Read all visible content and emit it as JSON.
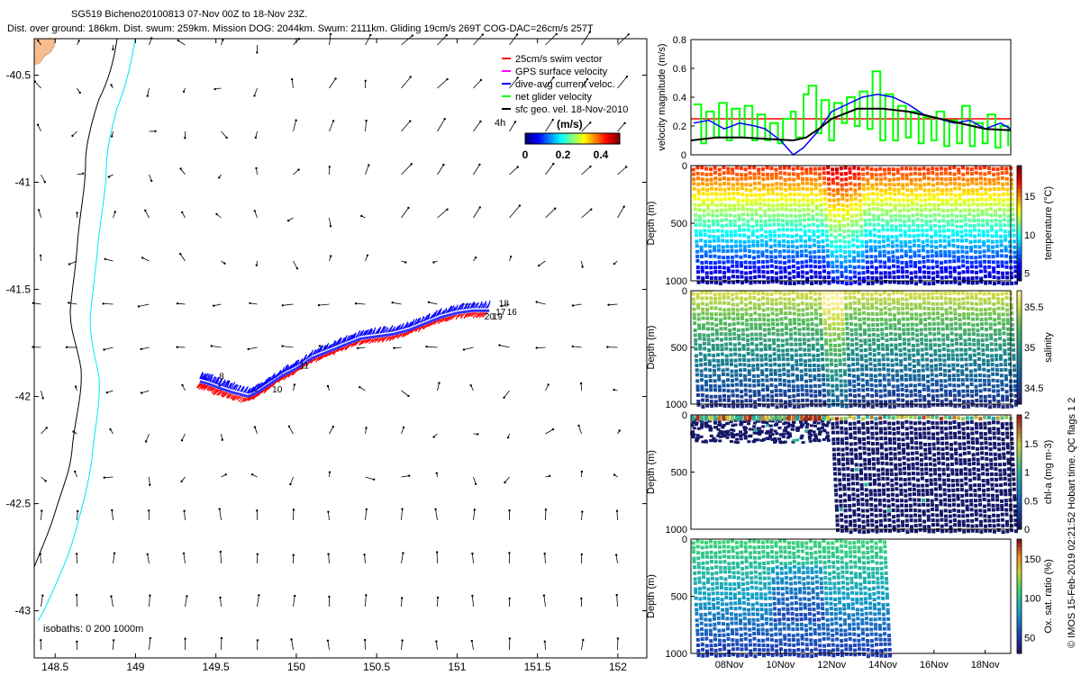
{
  "titles": {
    "line1": "SG519 Bicheno20100813 07-Nov 00Z to 18-Nov 23Z.",
    "line2": "Dist. over ground: 186km. Dist. swum: 259km. Mission DOG: 2044km. Swum: 2111km. Gliding 19cm/s 269T COG-DAC=26cm/s 257T"
  },
  "side_note": "© IMOS 15-Feb-2019 02:21:52 Hobart time. QC flags 1  2",
  "colors": {
    "swim": "#ff0000",
    "gps": "#ff00ff",
    "dac": "#0000ff",
    "net": "#00ff00",
    "sfc": "#000000",
    "coast": "#000000",
    "isobath": "#00e5ff",
    "land": "#f6bd8e",
    "red_line": "#ff0000"
  },
  "chart_data": [
    {
      "id": "map",
      "type": "scatter",
      "title": "",
      "xlim": [
        148.37,
        152.18
      ],
      "ylim": [
        -43.22,
        -40.33
      ],
      "x_ticks": [
        148.5,
        149,
        149.5,
        150,
        150.5,
        151,
        151.5,
        152
      ],
      "x_tick_labels": [
        "148.5",
        "149",
        "149.5",
        "150",
        "150.5",
        "151",
        "151.5",
        "152"
      ],
      "y_ticks": [
        -40.5,
        -41,
        -41.5,
        -42,
        -42.5,
        -43
      ],
      "y_tick_labels": [
        "-40.5",
        "-41",
        "-41.5",
        "-42",
        "-42.5",
        "-43"
      ],
      "legend_position": "top-right",
      "legend": [
        {
          "label": "25cm/s swim vector",
          "color_key": "swim"
        },
        {
          "label": "GPS surface velocity",
          "color_key": "gps"
        },
        {
          "label": "dive-avg current veloc.",
          "color_key": "dac"
        },
        {
          "label": "net glider velocity",
          "color_key": "net"
        },
        {
          "label": "sfc geo. vel. 18-Nov-2010",
          "color_key": "sfc"
        }
      ],
      "colorbar": {
        "label": "(m/s)",
        "ticks": [
          0,
          0.2,
          0.4
        ],
        "tick_labels": [
          "0",
          "0.2",
          "0.4"
        ],
        "range": [
          0,
          0.5
        ],
        "corner_label": "4h"
      },
      "isobath_label": "isobaths: 0   200  1000m",
      "track": {
        "lon": [
          149.4,
          149.45,
          149.52,
          149.6,
          149.7,
          149.76,
          149.84,
          149.92,
          150.0,
          150.1,
          150.2,
          150.3,
          150.4,
          150.5,
          150.6,
          150.7,
          150.8,
          150.9,
          151.0,
          151.1,
          151.2
        ],
        "lat": [
          -41.93,
          -41.94,
          -41.96,
          -41.98,
          -42.0,
          -41.98,
          -41.94,
          -41.9,
          -41.87,
          -41.82,
          -41.79,
          -41.76,
          -41.73,
          -41.72,
          -41.71,
          -41.69,
          -41.66,
          -41.63,
          -41.61,
          -41.6,
          -41.6
        ]
      },
      "track_labels": [
        {
          "text": "10",
          "lon": 149.85,
          "lat": -41.98
        },
        {
          "text": "11",
          "lon": 150.02,
          "lat": -41.87
        },
        {
          "text": "8",
          "lon": 149.52,
          "lat": -41.92
        },
        {
          "text": "17",
          "lon": 151.24,
          "lat": -41.62
        },
        {
          "text": "16",
          "lon": 151.31,
          "lat": -41.62
        },
        {
          "text": "18",
          "lon": 151.26,
          "lat": -41.58
        },
        {
          "text": "19",
          "lon": 151.22,
          "lat": -41.64
        },
        {
          "text": "20",
          "lon": 151.17,
          "lat": -41.64
        }
      ]
    },
    {
      "id": "velocity",
      "type": "line",
      "title": "",
      "ylabel": "velocity magnitude (m/s)",
      "ylim": [
        0,
        0.8
      ],
      "y_ticks": [
        0,
        0.2,
        0.4,
        0.6,
        0.8
      ],
      "y_tick_labels": [
        "0",
        "0.2",
        "0.4",
        "0.6",
        "0.8"
      ],
      "xlim": [
        6.5,
        19.0
      ],
      "series": [
        {
          "color_key": "net",
          "x": [
            6.6,
            6.9,
            7.1,
            7.4,
            7.6,
            7.9,
            8.1,
            8.4,
            8.6,
            8.9,
            9.1,
            9.4,
            9.6,
            9.9,
            10.1,
            10.4,
            10.6,
            10.9,
            11.1,
            11.4,
            11.6,
            11.9,
            12.1,
            12.4,
            12.6,
            12.9,
            13.1,
            13.4,
            13.6,
            13.9,
            14.1,
            14.4,
            14.6,
            14.9,
            15.1,
            15.4,
            15.6,
            15.9,
            16.1,
            16.4,
            16.6,
            16.9,
            17.1,
            17.4,
            17.6,
            17.9,
            18.1,
            18.4,
            18.6,
            18.9
          ],
          "y": [
            0.35,
            0.08,
            0.3,
            0.12,
            0.36,
            0.1,
            0.32,
            0.12,
            0.34,
            0.1,
            0.28,
            0.1,
            0.22,
            0.08,
            0.25,
            0.3,
            0.12,
            0.42,
            0.48,
            0.15,
            0.38,
            0.1,
            0.36,
            0.22,
            0.4,
            0.2,
            0.44,
            0.18,
            0.58,
            0.1,
            0.42,
            0.1,
            0.34,
            0.12,
            0.3,
            0.08,
            0.26,
            0.1,
            0.3,
            0.06,
            0.24,
            0.08,
            0.34,
            0.06,
            0.22,
            0.08,
            0.28,
            0.05,
            0.2,
            0.06
          ]
        },
        {
          "color_key": "dac",
          "x": [
            6.6,
            7.2,
            7.8,
            8.4,
            9.0,
            9.4,
            10.0,
            10.5,
            10.9,
            11.4,
            12.0,
            12.6,
            13.2,
            13.8,
            14.4,
            15.0,
            15.6,
            16.2,
            16.8,
            17.4,
            18.0,
            18.6,
            19.0
          ],
          "y": [
            0.22,
            0.24,
            0.18,
            0.22,
            0.2,
            0.18,
            0.1,
            0.0,
            0.05,
            0.15,
            0.3,
            0.35,
            0.4,
            0.42,
            0.4,
            0.35,
            0.28,
            0.25,
            0.22,
            0.24,
            0.18,
            0.22,
            0.18
          ]
        },
        {
          "color_key": "sfc",
          "x": [
            6.5,
            7.5,
            8.5,
            9.5,
            10.5,
            11.0,
            11.5,
            12.0,
            13.0,
            14.0,
            15.0,
            16.0,
            17.0,
            18.0,
            19.0
          ],
          "y": [
            0.1,
            0.12,
            0.12,
            0.11,
            0.1,
            0.12,
            0.18,
            0.25,
            0.32,
            0.32,
            0.3,
            0.26,
            0.22,
            0.18,
            0.17
          ]
        }
      ],
      "reference_line": 0.25
    },
    {
      "id": "temperature",
      "type": "heatmap",
      "ylabel": "Depth (m)",
      "ylim": [
        1000,
        0
      ],
      "y_ticks": [
        0,
        500,
        1000
      ],
      "y_tick_labels": [
        "0",
        "500",
        "1000"
      ],
      "colorbar": {
        "label": "temperature (°C)",
        "range": [
          4,
          19
        ],
        "ticks": [
          5,
          10,
          15
        ],
        "tick_labels": [
          "5",
          "10",
          "15"
        ]
      }
    },
    {
      "id": "salinity",
      "type": "heatmap",
      "ylabel": "Depth (m)",
      "ylim": [
        1000,
        0
      ],
      "y_ticks": [
        0,
        500,
        1000
      ],
      "y_tick_labels": [
        "0",
        "500",
        "1000"
      ],
      "colorbar": {
        "label": "salinity",
        "range": [
          34.3,
          35.7
        ],
        "ticks": [
          34.5,
          35,
          35.5
        ],
        "tick_labels": [
          "34.5",
          "35",
          "35.5"
        ]
      }
    },
    {
      "id": "chla",
      "type": "heatmap",
      "ylabel": "Depth (m)",
      "ylim": [
        1000,
        0
      ],
      "y_ticks": [
        0,
        500,
        1000
      ],
      "y_tick_labels": [
        "0",
        "500",
        "1000"
      ],
      "colorbar": {
        "label": "chl-a (mg m-3)",
        "range": [
          0,
          2
        ],
        "ticks": [
          0,
          0.5,
          1,
          1.5,
          2
        ],
        "tick_labels": [
          "0",
          "0.5",
          "1",
          "1.5",
          "2"
        ]
      }
    },
    {
      "id": "oxygen",
      "type": "heatmap",
      "ylabel": "Depth (m)",
      "ylim": [
        1000,
        0
      ],
      "y_ticks": [
        0,
        500,
        1000
      ],
      "y_tick_labels": [
        "0",
        "500",
        "1000"
      ],
      "xlim": [
        6.5,
        19.0
      ],
      "x_ticks": [
        8,
        10,
        12,
        14,
        16,
        18
      ],
      "x_tick_labels": [
        "08Nov",
        "10Nov",
        "12Nov",
        "14Nov",
        "16Nov",
        "18Nov"
      ],
      "colorbar": {
        "label": "Ox. sat. ratio (%)",
        "range": [
          30,
          175
        ],
        "ticks": [
          50,
          100,
          150
        ],
        "tick_labels": [
          "50",
          "100",
          "150"
        ]
      }
    }
  ]
}
